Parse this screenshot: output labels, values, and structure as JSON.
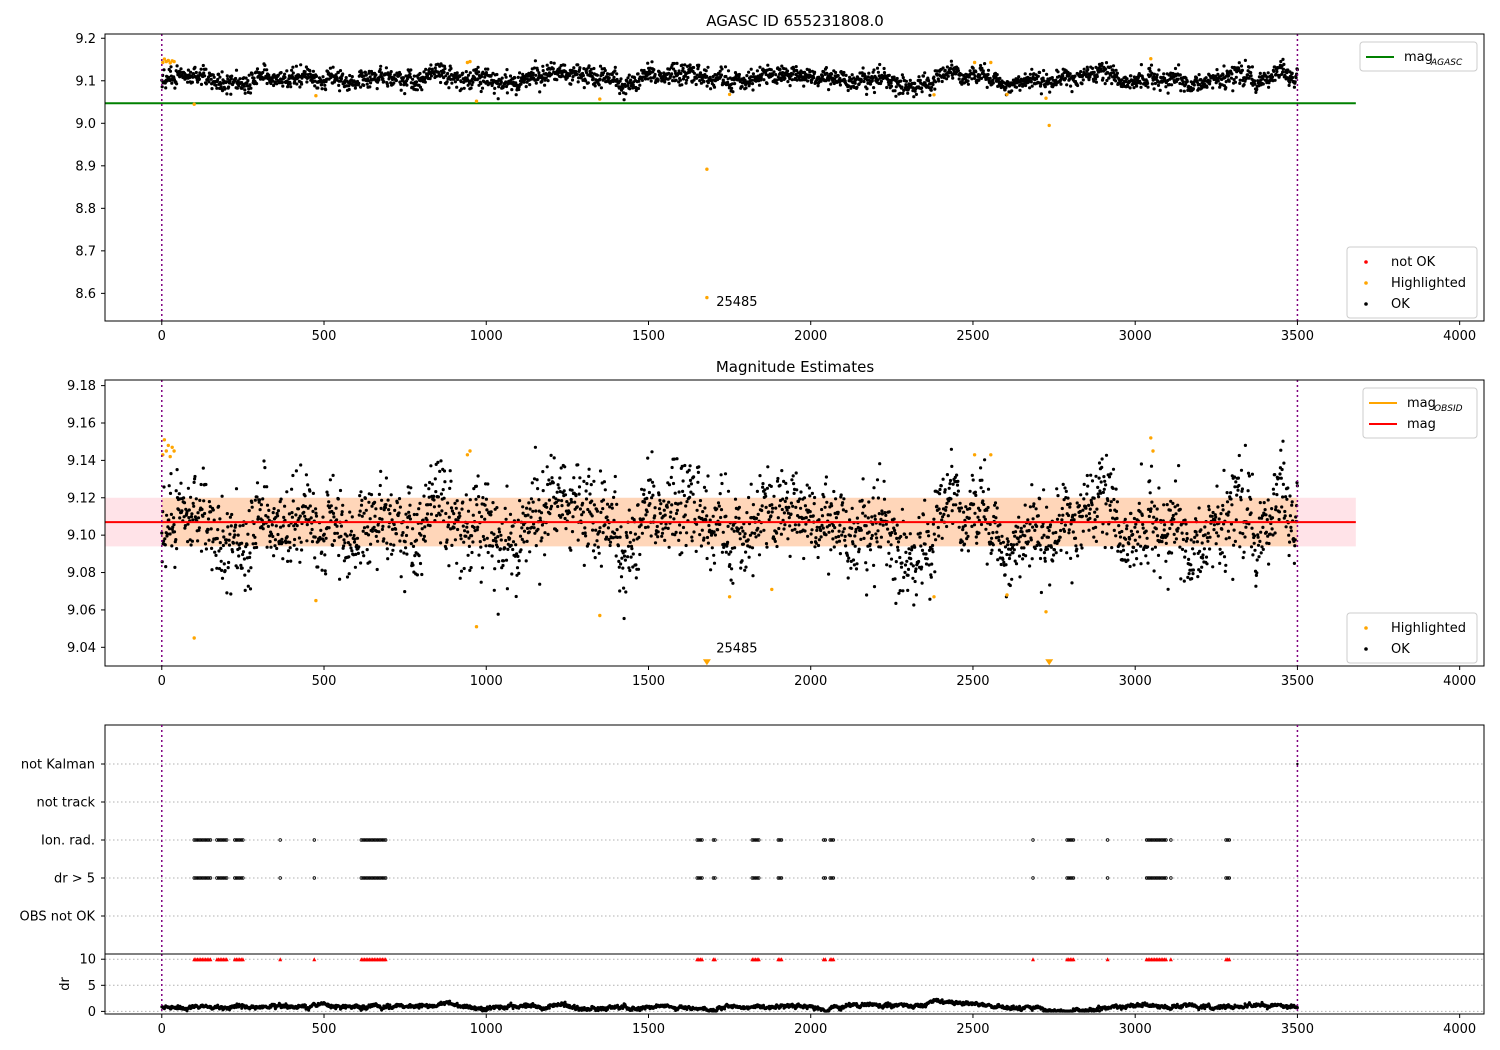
{
  "chart_data": [
    {
      "type": "scatter",
      "title": "AGASC ID 655231808.0",
      "xlim": [
        -175,
        4075
      ],
      "ylim": [
        8.535,
        9.21
      ],
      "xticks": [
        0,
        500,
        1000,
        1500,
        2000,
        2500,
        3000,
        3500,
        4000
      ],
      "yticks": [
        8.6,
        8.7,
        8.8,
        8.9,
        9.0,
        9.1,
        9.2
      ],
      "ytick_decimals": 1,
      "vlines": [
        0,
        3500
      ],
      "annotation": {
        "text": "25485",
        "x": 1680,
        "y": 8.57
      },
      "lines": [
        {
          "name": "mag_AGASC",
          "legend_main": "mag",
          "legend_sub": "AGASC",
          "y": 9.047,
          "x0": -175,
          "x1": 3680,
          "color": "#008000"
        }
      ],
      "series": [
        {
          "name": "not OK",
          "color": "#ff0000",
          "points": []
        },
        {
          "name": "Highlighted",
          "color": "#ffa500",
          "points": [
            [
              3,
              9.143
            ],
            [
              8,
              9.151
            ],
            [
              14,
              9.145
            ],
            [
              20,
              9.148
            ],
            [
              26,
              9.142
            ],
            [
              32,
              9.147
            ],
            [
              38,
              9.145
            ],
            [
              100,
              9.045
            ],
            [
              475,
              9.065
            ],
            [
              942,
              9.143
            ],
            [
              950,
              9.145
            ],
            [
              970,
              9.052
            ],
            [
              1350,
              9.057
            ],
            [
              1680,
              8.892
            ],
            [
              1680,
              8.59
            ],
            [
              1750,
              9.068
            ],
            [
              2380,
              9.067
            ],
            [
              2505,
              9.143
            ],
            [
              2555,
              9.143
            ],
            [
              2605,
              9.068
            ],
            [
              2725,
              9.059
            ],
            [
              2735,
              8.995
            ],
            [
              3048,
              9.152
            ]
          ]
        },
        {
          "name": "OK",
          "color": "#000000",
          "generated": {
            "mean": 9.107,
            "n": 2600,
            "x0": 0,
            "x1": 3500,
            "noise": 0.011,
            "wander": 0.009
          }
        }
      ],
      "legends": [
        {
          "position": "upper right",
          "entries": [
            {
              "label_main": "mag",
              "label_sub": "AGASC",
              "kind": "line",
              "color": "#008000"
            }
          ]
        },
        {
          "position": "lower right",
          "entries": [
            {
              "label": "not OK",
              "kind": "dot",
              "color": "#ff0000"
            },
            {
              "label": "Highlighted",
              "kind": "dot",
              "color": "#ffa500"
            },
            {
              "label": "OK",
              "kind": "dot",
              "color": "#000000"
            }
          ]
        }
      ]
    },
    {
      "type": "scatter",
      "title": "Magnitude Estimates",
      "xlim": [
        -175,
        4075
      ],
      "ylim": [
        9.03,
        9.183
      ],
      "xticks": [
        0,
        500,
        1000,
        1500,
        2000,
        2500,
        3000,
        3500,
        4000
      ],
      "yticks": [
        9.04,
        9.06,
        9.08,
        9.1,
        9.12,
        9.14,
        9.16,
        9.18
      ],
      "ytick_decimals": 2,
      "vlines": [
        0,
        3500
      ],
      "annotation": {
        "text": "25485",
        "x": 1680,
        "y": 9.034
      },
      "band": {
        "y0": 9.094,
        "y1": 9.12,
        "x0": -175,
        "x1": 3680
      },
      "lines": [
        {
          "name": "mag",
          "y": 9.107,
          "x0": -175,
          "x1": 3680,
          "color": "#ff0000"
        }
      ],
      "series": [
        {
          "name": "Highlighted",
          "color": "#ffa500",
          "points": [
            [
              3,
              9.143
            ],
            [
              8,
              9.151
            ],
            [
              14,
              9.145
            ],
            [
              20,
              9.148
            ],
            [
              26,
              9.142
            ],
            [
              32,
              9.147
            ],
            [
              38,
              9.145
            ],
            [
              100,
              9.045
            ],
            [
              475,
              9.065
            ],
            [
              942,
              9.143
            ],
            [
              950,
              9.145
            ],
            [
              970,
              9.051
            ],
            [
              1350,
              9.057
            ],
            [
              1750,
              9.067
            ],
            [
              1880,
              9.071
            ],
            [
              2380,
              9.067
            ],
            [
              2505,
              9.143
            ],
            [
              2555,
              9.143
            ],
            [
              2605,
              9.068
            ],
            [
              2725,
              9.059
            ],
            [
              3048,
              9.152
            ],
            [
              3055,
              9.145
            ]
          ]
        },
        {
          "name": "OK",
          "color": "#000000",
          "generated": {
            "mean": 9.107,
            "n": 2600,
            "x0": 0,
            "x1": 3500,
            "noise": 0.011,
            "wander": 0.009
          }
        }
      ],
      "markers": [
        {
          "x": 1680,
          "y": 9.032,
          "color": "#ffa500",
          "shape": "triangle-down"
        },
        {
          "x": 2735,
          "y": 9.032,
          "color": "#ffa500",
          "shape": "triangle-down"
        }
      ],
      "legends": [
        {
          "position": "upper right",
          "entries": [
            {
              "label_main": "mag",
              "label_sub": "OBSID",
              "kind": "line",
              "color": "#ffa500"
            },
            {
              "label": "mag",
              "kind": "line",
              "color": "#ff0000"
            }
          ]
        },
        {
          "position": "lower right",
          "entries": [
            {
              "label": "Highlighted",
              "kind": "dot",
              "color": "#ffa500"
            },
            {
              "label": "OK",
              "kind": "dot",
              "color": "#000000"
            }
          ]
        }
      ]
    },
    {
      "type": "scatter",
      "title": "",
      "xlim": [
        -175,
        4075
      ],
      "categories": [
        "not Kalman",
        "not track",
        "Ion. rad.",
        "dr > 5",
        "OBS not OK"
      ],
      "vlines": [
        0,
        3500
      ],
      "flag_clusters": [
        [
          100,
          150
        ],
        [
          170,
          200
        ],
        [
          225,
          250
        ],
        [
          365,
          365
        ],
        [
          470,
          470
        ],
        [
          615,
          690
        ],
        [
          1650,
          1665
        ],
        [
          1700,
          1705
        ],
        [
          1820,
          1840
        ],
        [
          1900,
          1910
        ],
        [
          2040,
          2045
        ],
        [
          2060,
          2070
        ],
        [
          2685,
          2685
        ],
        [
          2790,
          2810
        ],
        [
          2915,
          2915
        ],
        [
          3035,
          3095
        ],
        [
          3110,
          3110
        ],
        [
          3280,
          3290
        ]
      ],
      "flag_rows": [
        "Ion. rad.",
        "dr > 5"
      ],
      "kalman_points": [
        3500
      ]
    },
    {
      "type": "scatter",
      "title": "",
      "ylabel": "dr",
      "xlim": [
        -175,
        4075
      ],
      "ylim": [
        -0.5,
        11
      ],
      "xticks": [
        0,
        500,
        1000,
        1500,
        2000,
        2500,
        3000,
        3500,
        4000
      ],
      "yticks": [
        0,
        5,
        10
      ],
      "vlines": [
        0,
        3500
      ],
      "cap": 10,
      "series": [
        {
          "name": "dr",
          "color": "#000000",
          "generated": {
            "mean": 0.9,
            "n": 2600,
            "x0": 0,
            "x1": 3500,
            "noise": 0.15,
            "wander": 0.35
          }
        }
      ]
    }
  ]
}
